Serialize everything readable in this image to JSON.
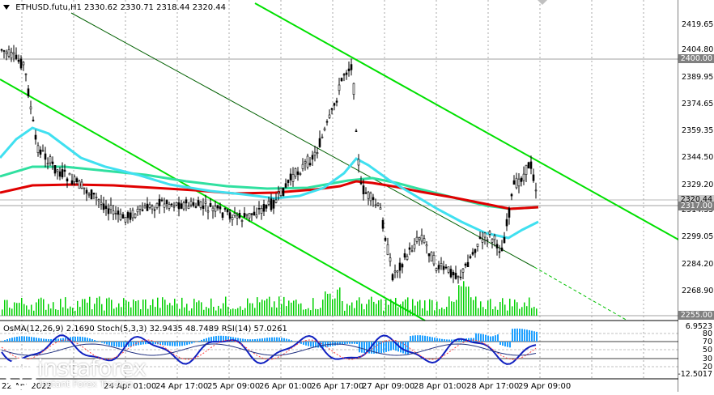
{
  "header": {
    "symbol_info": "ETHUSD.futu,H1  2330.62 2330.71 2318.44 2320.44"
  },
  "indicators_header": "OsMA(12,26,9) 2.1690   Stoch(5,3,3) 32.9435 48.7489  RSI(14) 57.0261",
  "price_axis": [
    "2419.65",
    "2404.80",
    "2389.95",
    "2374.65",
    "2359.35",
    "2344.50",
    "2329.20",
    "2314.35",
    "2299.05",
    "2284.20",
    "2268.90",
    "2255.00"
  ],
  "price_tags": {
    "level_2400": "2400.00",
    "current": "2320.44",
    "level_2317": "2317.00",
    "level_2255": "2255.00"
  },
  "osc_axis": [
    "6.9523",
    "80",
    "70",
    "50",
    "30",
    "20",
    "-12.5017"
  ],
  "date_axis": [
    "22 Apr 2022",
    "24 Apr 01:00",
    "24 Apr 17:00",
    "25 Apr 09:00",
    "26 Apr 01:00",
    "26 Apr 17:00",
    "27 Apr 09:00",
    "28 Apr 01:00",
    "28 Apr 17:00",
    "29 Apr 09:00"
  ],
  "logo": {
    "name": "instaforex",
    "tagline": "Instant Forex Trading"
  },
  "colors": {
    "channel": "#00e000",
    "ema_fast": "#40e0f0",
    "ema_mid": "#30e0a0",
    "ema_slow": "#e00000",
    "candles": "#000000",
    "osma": "#1fa0ff",
    "stoch_main": "#1020c0",
    "rsi": "#1020c0",
    "volume": "#00d000"
  }
}
